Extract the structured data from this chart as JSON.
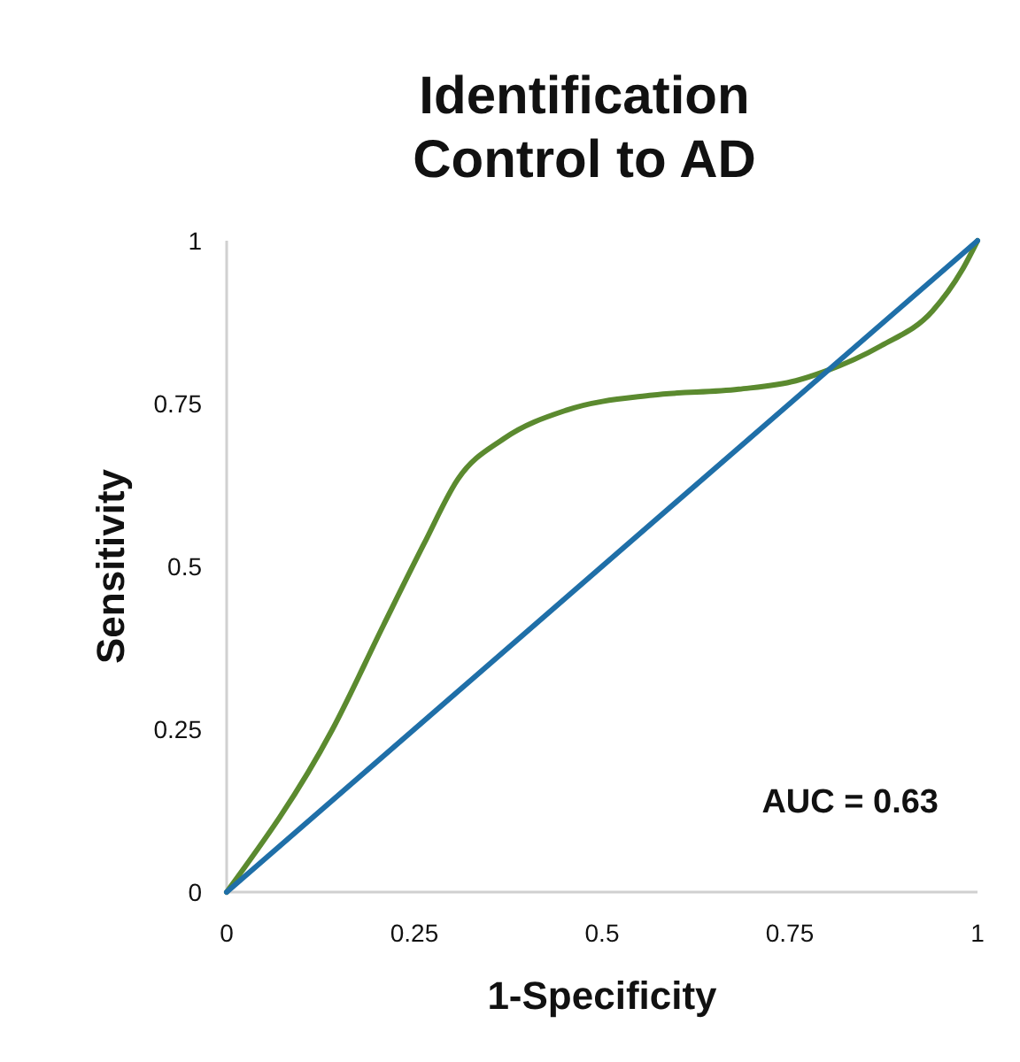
{
  "chart_data": {
    "type": "line",
    "title": "Identification\nControl to AD",
    "xlabel": "1-Specificity",
    "ylabel": "Sensitivity",
    "xlim": [
      0,
      1
    ],
    "ylim": [
      0,
      1
    ],
    "xticks": [
      0,
      0.25,
      0.5,
      0.75,
      1
    ],
    "yticks": [
      0,
      0.25,
      0.5,
      0.75,
      1
    ],
    "grid": false,
    "marker": "none",
    "annotations": [
      "AUC = 0.63"
    ],
    "series": [
      {
        "color": "#5b8a2f",
        "x": [
          0,
          0.141,
          0.209,
          0.263,
          0.308,
          0.369,
          0.453,
          0.567,
          0.682,
          0.758,
          0.796,
          0.872,
          0.94,
          0.979,
          1
        ],
        "values": [
          0,
          0.25,
          0.41,
          0.535,
          0.634,
          0.696,
          0.74,
          0.763,
          0.772,
          0.785,
          0.799,
          0.839,
          0.892,
          0.954,
          1
        ]
      },
      {
        "color": "#1f6fa8",
        "x": [
          0,
          1
        ],
        "values": [
          0,
          1
        ]
      }
    ]
  }
}
